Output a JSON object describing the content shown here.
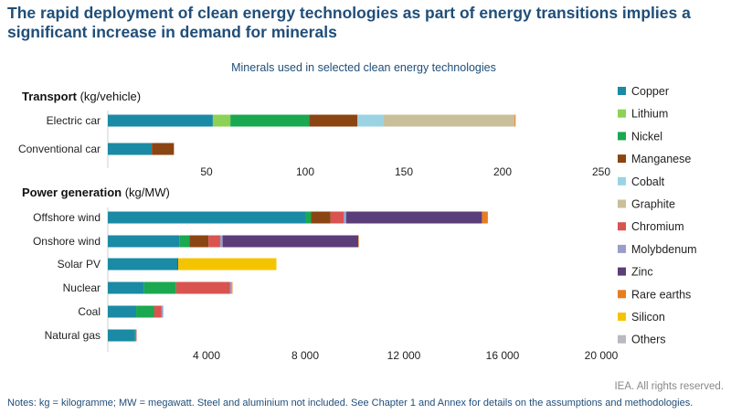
{
  "header": {
    "title": "The rapid deployment of clean energy technologies as part of energy transitions implies a significant increase in demand for minerals"
  },
  "footer": {
    "rights": "IEA. All rights reserved.",
    "notes": "Notes: kg = kilogramme; MW = megawatt. Steel and aluminium not included. See Chapter 1 and Annex for details on the assumptions and methodologies."
  },
  "colors": {
    "Copper": "#1b8aa5",
    "Lithium": "#8dd156",
    "Nickel": "#1aa850",
    "Manganese": "#8b4513",
    "Cobalt": "#9bd3e3",
    "Graphite": "#c9bf9a",
    "Chromium": "#d9534f",
    "Molybdenum": "#9a9dc8",
    "Zinc": "#5b3d7a",
    "Rare earths": "#e87d1e",
    "Silicon": "#f5c400",
    "Others": "#b9b9c4"
  },
  "chart_data": {
    "type": "bar",
    "orientation": "horizontal",
    "stacked": true,
    "subtitle": "Minerals used in selected clean energy technologies",
    "legend": [
      "Copper",
      "Lithium",
      "Nickel",
      "Manganese",
      "Cobalt",
      "Graphite",
      "Chromium",
      "Molybdenum",
      "Zinc",
      "Rare earths",
      "Silicon",
      "Others"
    ],
    "legend_position": "right",
    "panels": [
      {
        "label": "Transport",
        "unit": "(kg/vehicle)",
        "xlim": [
          0,
          250
        ],
        "ticks": [
          50,
          100,
          150,
          200,
          250
        ],
        "tick_labels": [
          "50",
          "100",
          "150",
          "200",
          "250"
        ],
        "categories": [
          "Electric car",
          "Conventional car"
        ],
        "series": [
          {
            "name": "Copper",
            "values": [
              53.2,
              22.3
            ]
          },
          {
            "name": "Lithium",
            "values": [
              8.9,
              0
            ]
          },
          {
            "name": "Nickel",
            "values": [
              39.9,
              0
            ]
          },
          {
            "name": "Manganese",
            "values": [
              24.5,
              11.2
            ]
          },
          {
            "name": "Cobalt",
            "values": [
              13.3,
              0
            ]
          },
          {
            "name": "Graphite",
            "values": [
              66.3,
              0
            ]
          },
          {
            "name": "Rare earths",
            "values": [
              0.5,
              0
            ]
          }
        ]
      },
      {
        "label": "Power generation",
        "unit": "(kg/MW)",
        "xlim": [
          0,
          20000
        ],
        "ticks": [
          4000,
          8000,
          12000,
          16000,
          20000
        ],
        "tick_labels": [
          "4 000",
          "8 000",
          "12 000",
          "16 000",
          "20 000"
        ],
        "categories": [
          "Offshore wind",
          "Onshore wind",
          "Solar PV",
          "Nuclear",
          "Coal",
          "Natural gas"
        ],
        "series": [
          {
            "name": "Copper",
            "values": [
              8000,
              2900,
              2822,
              1473,
              1150,
              1100
            ]
          },
          {
            "name": "Lithium",
            "values": [
              0,
              0,
              0,
              0,
              0,
              0
            ]
          },
          {
            "name": "Nickel",
            "values": [
              240,
              404,
              1.3,
              1297,
              721,
              16
            ]
          },
          {
            "name": "Manganese",
            "values": [
              790,
              780,
              0,
              0,
              0,
              0
            ]
          },
          {
            "name": "Cobalt",
            "values": [
              0,
              0,
              0,
              0,
              0,
              0
            ]
          },
          {
            "name": "Graphite",
            "values": [
              0,
              0,
              0,
              0,
              0,
              0
            ]
          },
          {
            "name": "Chromium",
            "values": [
              525,
              470,
              0,
              2190,
              308,
              48
            ]
          },
          {
            "name": "Molybdenum",
            "values": [
              109,
              99,
              0,
              70,
              66,
              0
            ]
          },
          {
            "name": "Zinc",
            "values": [
              5500,
              5500,
              30,
              0,
              0,
              0
            ]
          },
          {
            "name": "Rare earths",
            "values": [
              239,
              14,
              0,
              0.5,
              0,
              0
            ]
          },
          {
            "name": "Silicon",
            "values": [
              0,
              0,
              3980,
              0,
              0,
              0
            ]
          },
          {
            "name": "Others",
            "values": [
              0,
              0,
              0,
              0,
              0,
              0
            ]
          }
        ]
      }
    ]
  }
}
